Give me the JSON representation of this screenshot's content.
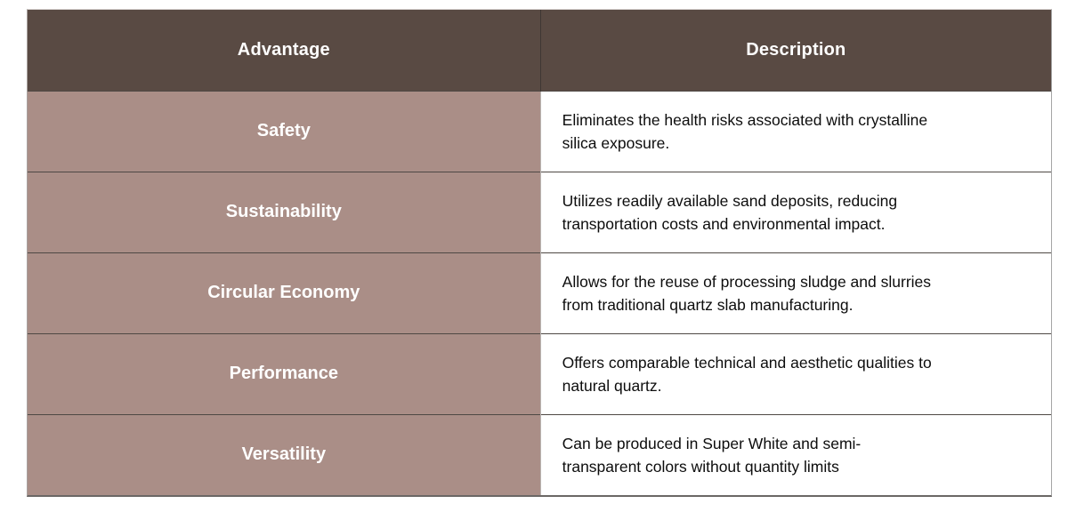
{
  "table": {
    "columns": [
      {
        "label": "Advantage"
      },
      {
        "label": "Description"
      }
    ],
    "rows": [
      {
        "advantage": "Safety",
        "description": "Eliminates the health risks associated with crystalline\nsilica exposure."
      },
      {
        "advantage": "Sustainability",
        "description": "Utilizes readily available sand deposits, reducing\ntransportation costs and environmental impact."
      },
      {
        "advantage": "Circular Economy",
        "description": "Allows for the reuse of processing sludge and slurries\nfrom traditional quartz slab manufacturing."
      },
      {
        "advantage": "Performance",
        "description": "Offers comparable technical and aesthetic qualities to\nnatural quartz."
      },
      {
        "advantage": "Versatility",
        "description": "Can be produced in Super White and semi-\ntransparent colors without quantity limits"
      }
    ],
    "colors": {
      "header_bg": "#594a43",
      "header_text": "#ffffff",
      "advantage_bg": "#aa8e87",
      "advantage_text": "#ffffff",
      "description_bg": "#ffffff",
      "description_text": "#0d0d0d",
      "grid_line": "#4e4844"
    }
  }
}
